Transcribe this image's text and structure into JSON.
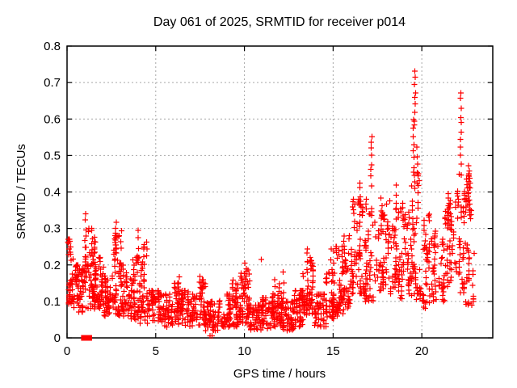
{
  "window": {
    "title": "Day 061 of 2025, SRMTID for receiver p014"
  },
  "chart_data": {
    "type": "scatter",
    "title": "Day 061 of 2025, SRMTID for receiver p014",
    "xlabel": "GPS time / hours",
    "ylabel": "SRMTID / TECUs",
    "xlim": [
      0,
      24
    ],
    "ylim": [
      0,
      0.8
    ],
    "x_tick_values": [
      0,
      5,
      10,
      15,
      20
    ],
    "x_tick_labels": [
      "0",
      "5",
      "10",
      "15",
      "20"
    ],
    "y_tick_values": [
      0,
      0.1,
      0.2,
      0.3,
      0.4,
      0.5,
      0.6,
      0.7,
      0.8
    ],
    "y_tick_labels": [
      "0",
      "0.1",
      "0.2",
      "0.3",
      "0.4",
      "0.5",
      "0.6",
      "0.7",
      "0.8"
    ],
    "grid": true,
    "grid_color": "#a8a8a8",
    "marker": {
      "shape": "plus",
      "color": "#ff0000",
      "size": 7,
      "stroke": 1.2
    },
    "legend": "none",
    "series": [
      {
        "name": "SRMTID",
        "color": "#ff0000",
        "bands_format": "[x_start_hours, x_end_hours, y_min_TECUs, y_max_TECUs, n_points]",
        "bands": [
          [
            0.05,
            0.35,
            0.09,
            0.27,
            40
          ],
          [
            0.35,
            0.7,
            0.07,
            0.2,
            38
          ],
          [
            0.7,
            1.0,
            0.07,
            0.19,
            32
          ],
          [
            1.0,
            1.6,
            0.08,
            0.3,
            78
          ],
          [
            1.6,
            2.1,
            0.08,
            0.22,
            55
          ],
          [
            2.1,
            2.6,
            0.06,
            0.17,
            45
          ],
          [
            2.6,
            3.0,
            0.06,
            0.28,
            48
          ],
          [
            3.0,
            3.6,
            0.06,
            0.2,
            50
          ],
          [
            3.6,
            4.1,
            0.05,
            0.22,
            45
          ],
          [
            4.1,
            4.5,
            0.04,
            0.27,
            38
          ],
          [
            4.5,
            5.2,
            0.035,
            0.13,
            55
          ],
          [
            5.2,
            5.8,
            0.03,
            0.12,
            50
          ],
          [
            5.8,
            6.5,
            0.035,
            0.15,
            55
          ],
          [
            6.5,
            7.2,
            0.03,
            0.13,
            55
          ],
          [
            7.2,
            7.8,
            0.035,
            0.16,
            50
          ],
          [
            7.8,
            8.5,
            0.02,
            0.1,
            55
          ],
          [
            8.5,
            9.2,
            0.03,
            0.12,
            55
          ],
          [
            9.2,
            9.8,
            0.03,
            0.16,
            50
          ],
          [
            9.8,
            10.3,
            0.04,
            0.19,
            50
          ],
          [
            10.3,
            11.0,
            0.02,
            0.09,
            60
          ],
          [
            11.0,
            11.6,
            0.025,
            0.11,
            55
          ],
          [
            11.6,
            12.1,
            0.03,
            0.15,
            50
          ],
          [
            12.1,
            12.8,
            0.02,
            0.1,
            60
          ],
          [
            12.8,
            13.3,
            0.03,
            0.13,
            50
          ],
          [
            13.3,
            13.9,
            0.06,
            0.22,
            55
          ],
          [
            13.9,
            14.6,
            0.03,
            0.12,
            50
          ],
          [
            14.6,
            15.1,
            0.05,
            0.18,
            45
          ],
          [
            15.1,
            15.6,
            0.06,
            0.25,
            50
          ],
          [
            15.6,
            16.1,
            0.08,
            0.28,
            50
          ],
          [
            16.1,
            16.7,
            0.12,
            0.38,
            55
          ],
          [
            16.7,
            17.3,
            0.1,
            0.42,
            55
          ],
          [
            17.3,
            18.0,
            0.13,
            0.4,
            55
          ],
          [
            18.0,
            18.7,
            0.12,
            0.38,
            50
          ],
          [
            18.7,
            19.3,
            0.1,
            0.42,
            55
          ],
          [
            19.3,
            19.9,
            0.1,
            0.45,
            55
          ],
          [
            19.9,
            20.6,
            0.08,
            0.35,
            50
          ],
          [
            20.6,
            21.3,
            0.1,
            0.33,
            50
          ],
          [
            21.3,
            21.9,
            0.14,
            0.4,
            50
          ],
          [
            21.9,
            22.5,
            0.12,
            0.45,
            50
          ],
          [
            22.5,
            22.95,
            0.09,
            0.45,
            48
          ]
        ],
        "columns_format": "[x_hours, y_min_TECUs, y_max_TECUs, n_points] — vertical spike streaks",
        "columns": [
          [
            1.05,
            0.18,
            0.345,
            8
          ],
          [
            2.75,
            0.22,
            0.315,
            8
          ],
          [
            3.05,
            0.15,
            0.3,
            6
          ],
          [
            4.0,
            0.18,
            0.295,
            6
          ],
          [
            4.35,
            0.15,
            0.25,
            5
          ],
          [
            6.3,
            0.1,
            0.165,
            5
          ],
          [
            7.5,
            0.1,
            0.17,
            5
          ],
          [
            9.35,
            0.08,
            0.155,
            5
          ],
          [
            10.0,
            0.1,
            0.2,
            6
          ],
          [
            11.7,
            0.06,
            0.16,
            6
          ],
          [
            12.2,
            0.08,
            0.175,
            5
          ],
          [
            13.55,
            0.12,
            0.245,
            8
          ],
          [
            14.9,
            0.1,
            0.24,
            6
          ],
          [
            15.05,
            0.12,
            0.24,
            5
          ],
          [
            16.5,
            0.3,
            0.43,
            7
          ],
          [
            17.15,
            0.42,
            0.555,
            8
          ],
          [
            18.55,
            0.3,
            0.42,
            6
          ],
          [
            19.55,
            0.45,
            0.6,
            8
          ],
          [
            19.62,
            0.58,
            0.73,
            9
          ],
          [
            19.75,
            0.4,
            0.52,
            6
          ],
          [
            21.5,
            0.33,
            0.4,
            5
          ],
          [
            22.2,
            0.45,
            0.675,
            11
          ],
          [
            22.65,
            0.38,
            0.47,
            8
          ]
        ],
        "outlier_points": [
          [
            8.05,
            0.005
          ],
          [
            8.18,
            0.005
          ],
          [
            10.95,
            0.215
          ],
          [
            0.1,
            0.27
          ]
        ]
      }
    ],
    "baseline_squares": {
      "y": 0,
      "x": [
        0.95,
        1.1,
        1.25
      ],
      "size": 7,
      "color": "#ff0000"
    }
  }
}
